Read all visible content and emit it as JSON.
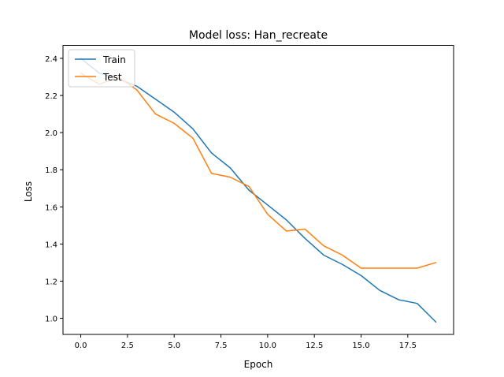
{
  "chart_data": {
    "type": "line",
    "title": "Model loss: Han_recreate",
    "xlabel": "Epoch",
    "ylabel": "Loss",
    "xlim": [
      -0.95,
      19.95
    ],
    "ylim": [
      0.913,
      2.47
    ],
    "x_ticks": [
      0,
      2.5,
      5,
      7.5,
      10,
      12.5,
      15,
      17.5
    ],
    "x_tick_labels": [
      "0.0",
      "2.5",
      "5.0",
      "7.5",
      "10.0",
      "12.5",
      "15.0",
      "17.5"
    ],
    "y_ticks": [
      1.0,
      1.2,
      1.4,
      1.6,
      1.8,
      2.0,
      2.2,
      2.4
    ],
    "y_tick_labels": [
      "1.0",
      "1.2",
      "1.4",
      "1.6",
      "1.8",
      "2.0",
      "2.2",
      "2.4"
    ],
    "grid": false,
    "legend_position": "top-left",
    "x": [
      0,
      1,
      2,
      3,
      4,
      5,
      6,
      7,
      8,
      9,
      10,
      11,
      12,
      13,
      14,
      15,
      16,
      17,
      18,
      19
    ],
    "series": [
      {
        "name": "Train",
        "color": "#1f77b4",
        "values": [
          2.4,
          2.32,
          2.29,
          2.25,
          2.18,
          2.11,
          2.02,
          1.89,
          1.81,
          1.69,
          1.61,
          1.53,
          1.43,
          1.34,
          1.29,
          1.23,
          1.15,
          1.1,
          1.08,
          0.98
        ]
      },
      {
        "name": "Test",
        "color": "#ff7f0e",
        "values": [
          2.32,
          2.26,
          2.3,
          2.23,
          2.1,
          2.05,
          1.97,
          1.78,
          1.76,
          1.71,
          1.56,
          1.47,
          1.48,
          1.39,
          1.34,
          1.27,
          1.27,
          1.27,
          1.27,
          1.3
        ]
      }
    ]
  }
}
